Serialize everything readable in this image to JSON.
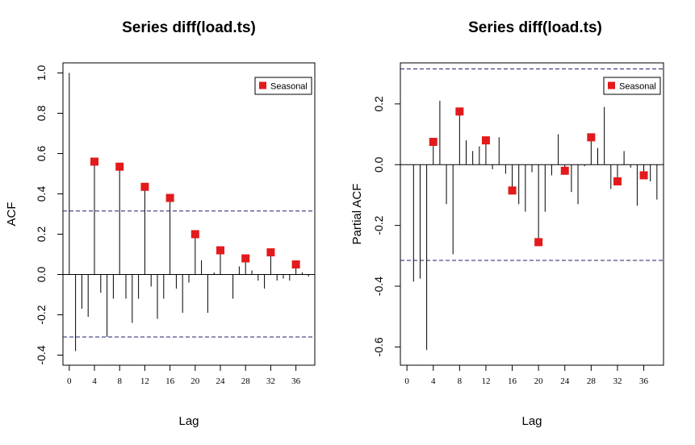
{
  "chart_data": [
    {
      "type": "bar",
      "title": "Series  diff(load.ts)",
      "xlabel": "Lag",
      "ylabel": "ACF",
      "xlim": [
        -1,
        39
      ],
      "ylim": [
        -0.45,
        1.05
      ],
      "yticks": [
        -0.4,
        -0.2,
        0.0,
        0.2,
        0.4,
        0.6,
        0.8,
        1.0
      ],
      "ytick_labels": [
        "-0.4",
        "-0.2",
        "0.0",
        "0.2",
        "0.4",
        "0.6",
        "0.8",
        "1.0"
      ],
      "xticks": [
        0,
        4,
        8,
        12,
        16,
        20,
        24,
        28,
        32,
        36
      ],
      "xtick_labels": [
        "0",
        "4",
        "8",
        "12",
        "16",
        "20",
        "24",
        "28",
        "32",
        "36"
      ],
      "confidence_bounds": [
        0.315,
        -0.31
      ],
      "lags": [
        0,
        1,
        2,
        3,
        4,
        5,
        6,
        7,
        8,
        9,
        10,
        11,
        12,
        13,
        14,
        15,
        16,
        17,
        18,
        19,
        20,
        21,
        22,
        23,
        24,
        25,
        26,
        27,
        28,
        29,
        30,
        31,
        32,
        33,
        34,
        35,
        36,
        37,
        38
      ],
      "values": [
        1.0,
        -0.38,
        -0.17,
        -0.21,
        0.56,
        -0.09,
        -0.31,
        -0.12,
        0.535,
        -0.12,
        -0.24,
        -0.12,
        0.435,
        -0.06,
        -0.22,
        -0.12,
        0.38,
        -0.07,
        -0.19,
        -0.04,
        0.2,
        0.07,
        -0.19,
        0.01,
        0.12,
        0.0,
        -0.12,
        0.04,
        0.08,
        0.02,
        -0.03,
        -0.07,
        0.11,
        -0.03,
        -0.02,
        -0.03,
        0.05,
        0.01,
        -0.01
      ],
      "seasonal": {
        "lags": [
          4,
          8,
          12,
          16,
          20,
          24,
          28,
          32,
          36
        ],
        "values": [
          0.56,
          0.535,
          0.435,
          0.38,
          0.2,
          0.12,
          0.08,
          0.11,
          0.05
        ]
      },
      "legend": {
        "label": "Seasonal",
        "position": "top-right",
        "color": "#e31a1c"
      },
      "grid": false
    },
    {
      "type": "bar",
      "title": "Series  diff(load.ts)",
      "xlabel": "Lag",
      "ylabel": "Partial ACF",
      "xlim": [
        -1,
        39
      ],
      "ylim": [
        -0.66,
        0.335
      ],
      "yticks": [
        -0.6,
        -0.4,
        -0.2,
        0.0,
        0.2
      ],
      "ytick_labels": [
        "-0.6",
        "-0.4",
        "-0.2",
        "0.0",
        "0.2"
      ],
      "xticks": [
        0,
        4,
        8,
        12,
        16,
        20,
        24,
        28,
        32,
        36
      ],
      "xtick_labels": [
        "0",
        "4",
        "8",
        "12",
        "16",
        "20",
        "24",
        "28",
        "32",
        "36"
      ],
      "confidence_bounds": [
        0.315,
        -0.315
      ],
      "lags": [
        1,
        2,
        3,
        4,
        5,
        6,
        7,
        8,
        9,
        10,
        11,
        12,
        13,
        14,
        15,
        16,
        17,
        18,
        19,
        20,
        21,
        22,
        23,
        24,
        25,
        26,
        27,
        28,
        29,
        30,
        31,
        32,
        33,
        34,
        35,
        36,
        37,
        38
      ],
      "values": [
        -0.385,
        -0.375,
        -0.61,
        0.075,
        0.21,
        -0.13,
        -0.295,
        0.175,
        0.08,
        0.045,
        0.06,
        0.08,
        -0.015,
        0.09,
        -0.03,
        -0.085,
        -0.13,
        -0.155,
        -0.025,
        -0.255,
        -0.155,
        -0.035,
        0.1,
        -0.02,
        -0.09,
        -0.13,
        -0.005,
        0.09,
        0.055,
        0.19,
        -0.08,
        -0.055,
        0.045,
        -0.01,
        -0.135,
        -0.035,
        -0.055,
        -0.115
      ],
      "seasonal": {
        "lags": [
          4,
          8,
          12,
          16,
          20,
          24,
          28,
          32,
          36
        ],
        "values": [
          0.075,
          0.175,
          0.08,
          -0.085,
          -0.255,
          -0.02,
          0.09,
          -0.055,
          -0.035
        ]
      },
      "legend": {
        "label": "Seasonal",
        "position": "top-right",
        "color": "#e31a1c"
      },
      "grid": false
    }
  ]
}
